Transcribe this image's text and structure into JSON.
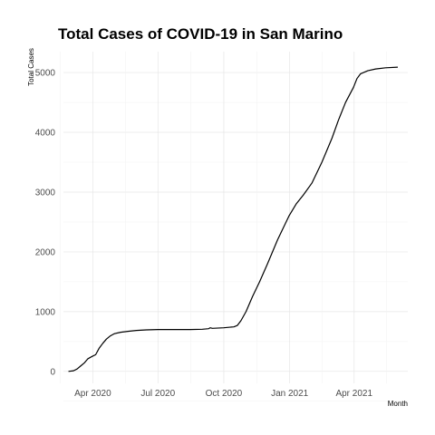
{
  "chart_data": {
    "type": "line",
    "title": "Total Cases of COVID-19 in San Marino",
    "xlabel": "Month",
    "ylabel": "Total Cases",
    "x_ticks": [
      "Apr 2020",
      "Jul 2020",
      "Oct 2020",
      "Jan 2021",
      "Apr 2021"
    ],
    "y_ticks": [
      "0",
      "1000",
      "2000",
      "3000",
      "4000",
      "5000"
    ],
    "xlim": [
      "2020-02-20",
      "2021-06-15"
    ],
    "ylim": [
      -200,
      5350
    ],
    "grid": true,
    "series": [
      {
        "x": [
          "2020-02-27",
          "2020-03-05",
          "2020-03-10",
          "2020-03-15",
          "2020-03-20",
          "2020-03-25",
          "2020-03-31",
          "2020-04-05",
          "2020-04-10",
          "2020-04-15",
          "2020-04-20",
          "2020-04-25",
          "2020-05-01",
          "2020-05-10",
          "2020-05-20",
          "2020-06-01",
          "2020-06-15",
          "2020-07-01",
          "2020-07-15",
          "2020-08-01",
          "2020-08-15",
          "2020-09-01",
          "2020-09-10",
          "2020-09-12",
          "2020-09-15",
          "2020-10-01",
          "2020-10-15",
          "2020-10-20",
          "2020-10-25",
          "2020-11-01",
          "2020-11-10",
          "2020-11-20",
          "2020-12-01",
          "2020-12-15",
          "2020-12-31",
          "2021-01-10",
          "2021-01-20",
          "2021-02-01",
          "2021-02-15",
          "2021-03-01",
          "2021-03-10",
          "2021-03-20",
          "2021-03-31",
          "2021-04-05",
          "2021-04-10",
          "2021-04-20",
          "2021-05-01",
          "2021-05-15",
          "2021-06-01"
        ],
        "y": [
          0,
          10,
          40,
          90,
          140,
          210,
          250,
          280,
          390,
          470,
          540,
          590,
          630,
          655,
          670,
          685,
          695,
          700,
          700,
          700,
          700,
          705,
          715,
          730,
          720,
          730,
          745,
          770,
          850,
          1000,
          1250,
          1500,
          1800,
          2200,
          2600,
          2800,
          2950,
          3150,
          3500,
          3900,
          4200,
          4500,
          4750,
          4900,
          4980,
          5030,
          5060,
          5080,
          5090
        ]
      }
    ]
  }
}
